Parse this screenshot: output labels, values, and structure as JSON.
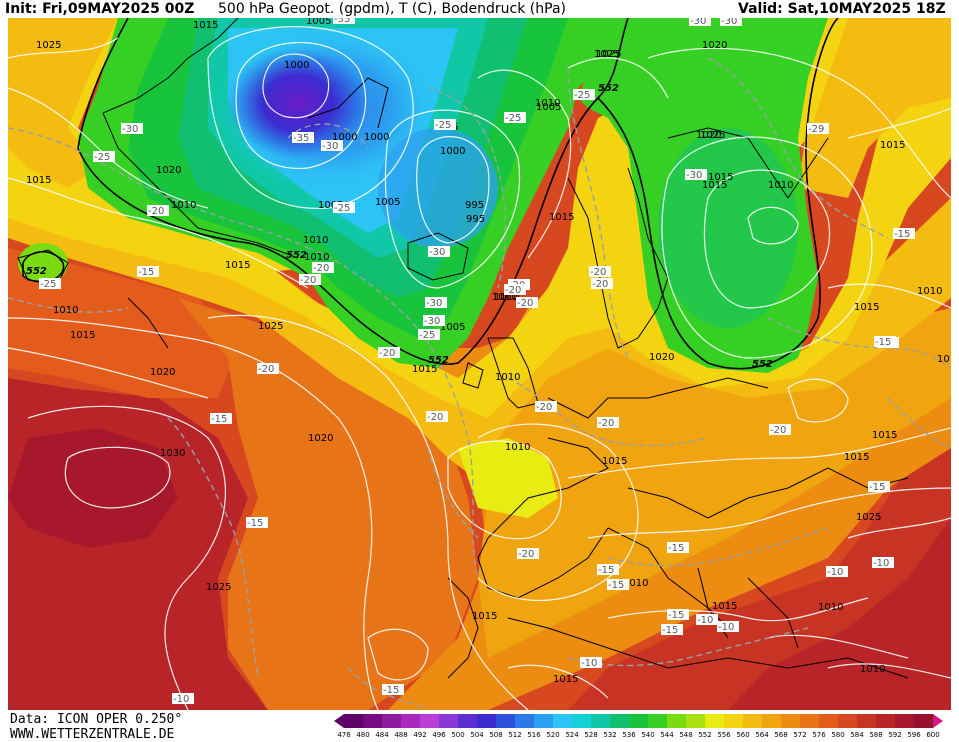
{
  "header": {
    "init": "Init: Fri,09MAY2025 00Z",
    "title": "500 hPa Geopot. (gpdm), T (C), Bodendruck (hPa)",
    "valid": "Valid: Sat,10MAY2025 18Z"
  },
  "footer": {
    "data_source": "Data: ICON OPER 0.250°",
    "website": "WWW.WETTERZENTRALE.DE"
  },
  "legend": {
    "values": [
      "476",
      "480",
      "484",
      "488",
      "492",
      "496",
      "500",
      "504",
      "508",
      "512",
      "516",
      "520",
      "524",
      "528",
      "532",
      "536",
      "540",
      "544",
      "548",
      "552",
      "556",
      "560",
      "564",
      "568",
      "572",
      "576",
      "580",
      "584",
      "588",
      "592",
      "596",
      "600"
    ],
    "colors": [
      "#5e0068",
      "#760a80",
      "#8e1aa0",
      "#a828c0",
      "#b83ed6",
      "#8a37d8",
      "#5e2ed2",
      "#3c2cd0",
      "#2c50dc",
      "#2c78e8",
      "#2ca0f0",
      "#2cc4f4",
      "#16d0d8",
      "#10c8a8",
      "#10c070",
      "#18c43c",
      "#36d024",
      "#78dc10",
      "#a8e010",
      "#e8ec10",
      "#f4d410",
      "#f4bc10",
      "#f0a410",
      "#ec8c10",
      "#e87418",
      "#e45c1c",
      "#d84820",
      "#c83424",
      "#b82428",
      "#a8182c",
      "#981030",
      "#d01888"
    ]
  },
  "map": {
    "colors": {
      "contour": "#ffffff",
      "coast": "#000000",
      "isotherm": "#9aa0a8",
      "geopot_552": "#000000"
    },
    "pressure_labels": [
      "1025",
      "1015",
      "1005",
      "1000",
      "1020",
      "1010",
      "1015",
      "1010",
      "1025",
      "1000",
      "1000",
      "995",
      "1005",
      "1010",
      "1010",
      "1015",
      "1025",
      "1020",
      "1025",
      "1015",
      "1010",
      "1015",
      "1010",
      "1015",
      "1020",
      "1010",
      "1015",
      "1015",
      "1025",
      "1030",
      "1020",
      "1025",
      "1015",
      "1015",
      "1010",
      "1010",
      "1015",
      "1010",
      "1010",
      "1015",
      "1010",
      "1015",
      "1015",
      "1015",
      "1015",
      "1025",
      "1005",
      "1010",
      "1005",
      "1015",
      "1000",
      "995",
      "1005",
      "1010",
      "1020",
      "1020",
      "1015"
    ],
    "temp_labels": [
      "-35",
      "-35",
      "-30",
      "-30",
      "-25",
      "-30",
      "-25",
      "-20",
      "-30",
      "-25",
      "-20",
      "-20",
      "-25",
      "-20",
      "-30",
      "-30",
      "-30",
      "-25",
      "-20",
      "-20",
      "-15",
      "-15",
      "-15",
      "-20",
      "-15",
      "-20",
      "-20",
      "-20",
      "-15",
      "-20",
      "-20",
      "-25",
      "-15",
      "-15",
      "-15",
      "-15",
      "-15",
      "-15",
      "-10",
      "-10",
      "-10",
      "-10",
      "-15",
      "-10",
      "-20",
      "-10",
      "-25",
      "-20",
      "-20",
      "-30",
      "-29",
      "-15"
    ],
    "geopot_labels": [
      "552",
      "552",
      "552",
      "552",
      "552"
    ]
  }
}
